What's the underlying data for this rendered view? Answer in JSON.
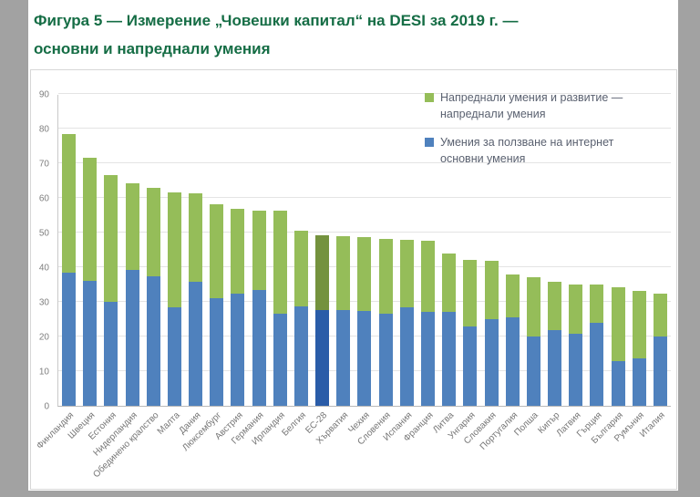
{
  "page": {
    "background_color": "#a2a2a2",
    "paper_color": "#ffffff"
  },
  "title": {
    "line1": "Фигура 5 — Измерение „Човешки капитал“ на DESI за 2019 г. —",
    "line2": "основни и напреднали умения",
    "color": "#156d45"
  },
  "legend": {
    "advanced": {
      "line1": "Напреднали умения и развитие —",
      "line2": "напреднали умения"
    },
    "basic": {
      "line1": "Умения за ползване на интернет",
      "line2": "основни умения"
    }
  },
  "chart_data": {
    "type": "bar",
    "stacked": true,
    "title": "",
    "xlabel": "",
    "ylabel": "",
    "ylim": [
      0,
      90
    ],
    "yticks": [
      0,
      10,
      20,
      30,
      40,
      50,
      60,
      70,
      80,
      90
    ],
    "grid": true,
    "legend_position": "top-right",
    "highlight_category": "ЕС-28",
    "categories": [
      "Финландия",
      "Швеция",
      "Естония",
      "Нидерландия",
      "Обединено кралство",
      "Малта",
      "Дания",
      "Люксембург",
      "Австрия",
      "Германия",
      "Ирландия",
      "Белгия",
      "ЕС-28",
      "Хърватия",
      "Чехия",
      "Словения",
      "Испания",
      "Франция",
      "Литва",
      "Унгария",
      "Словакия",
      "Португалия",
      "Полша",
      "Кипър",
      "Латвия",
      "Гърция",
      "България",
      "Румъния",
      "Италия"
    ],
    "series": [
      {
        "name": "Умения за ползване на интернет основни умения",
        "color": "#4f81bd",
        "highlight_color": "#2a5ca8",
        "values": [
          38.3,
          36.0,
          30.1,
          39.2,
          37.5,
          28.5,
          35.7,
          31.0,
          32.5,
          33.4,
          26.6,
          28.7,
          27.7,
          27.6,
          27.3,
          26.6,
          28.3,
          27.2,
          27.0,
          22.8,
          24.9,
          25.6,
          20.0,
          21.8,
          20.8,
          24.0,
          12.9,
          13.6,
          20.0
        ]
      },
      {
        "name": "Напреднали умения и развитие — напреднали умения",
        "color": "#95bd59",
        "highlight_color": "#74923e",
        "values": [
          40.1,
          35.7,
          36.5,
          24.9,
          25.5,
          33.1,
          25.5,
          27.2,
          24.3,
          23.0,
          29.6,
          21.8,
          21.6,
          21.4,
          21.3,
          21.6,
          19.6,
          20.4,
          17.0,
          19.2,
          16.9,
          12.2,
          17.2,
          14.1,
          14.3,
          11.0,
          21.2,
          19.6,
          12.5
        ]
      }
    ],
    "totals": [
      78.4,
      71.7,
      66.6,
      64.1,
      63.0,
      61.6,
      61.2,
      58.2,
      56.8,
      56.4,
      56.2,
      50.5,
      49.3,
      49.0,
      48.6,
      48.2,
      47.9,
      47.6,
      44.0,
      42.0,
      41.8,
      37.8,
      37.2,
      35.9,
      35.1,
      35.0,
      34.1,
      33.2,
      32.5
    ]
  }
}
